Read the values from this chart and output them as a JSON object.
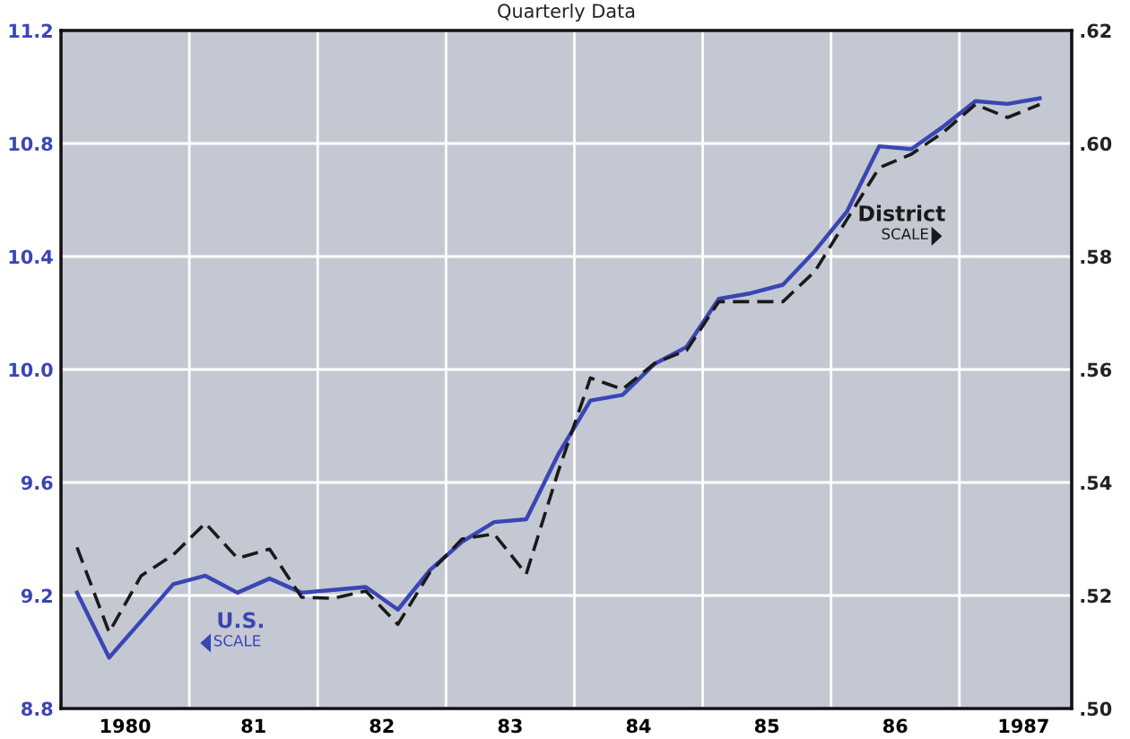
{
  "chart_data": {
    "type": "line",
    "title": "Quarterly Data",
    "x": [
      1979.625,
      1979.875,
      1980.125,
      1980.375,
      1980.625,
      1980.875,
      1981.125,
      1981.375,
      1981.625,
      1981.875,
      1982.125,
      1982.375,
      1982.625,
      1982.875,
      1983.125,
      1983.375,
      1983.625,
      1983.875,
      1984.125,
      1984.375,
      1984.625,
      1984.875,
      1985.125,
      1985.375,
      1985.625,
      1985.875,
      1986.125,
      1986.375,
      1986.625,
      1986.875,
      1987.125
    ],
    "series": [
      {
        "name": "U.S.",
        "color": "#3a46b4",
        "line_style": "solid",
        "values": [
          9.21,
          8.98,
          9.11,
          9.24,
          9.27,
          9.21,
          9.26,
          9.21,
          9.22,
          9.23,
          9.15,
          9.29,
          9.39,
          9.46,
          9.47,
          9.7,
          9.89,
          9.91,
          10.02,
          10.08,
          10.25,
          10.27,
          10.3,
          10.42,
          10.56,
          10.79,
          10.78,
          10.86,
          10.95,
          10.94,
          10.96
        ]
      },
      {
        "name": "District",
        "color": "#1a1a1a",
        "line_style": "dashed",
        "axis": "y2",
        "values": [
          0.5285,
          0.5135,
          0.5235,
          0.5272,
          0.5328,
          0.5266,
          0.5282,
          0.5197,
          0.5195,
          0.5208,
          0.5149,
          0.5241,
          0.53,
          0.5309,
          0.5238,
          0.542,
          0.5585,
          0.5565,
          0.5611,
          0.5634,
          0.572,
          0.572,
          0.572,
          0.5774,
          0.5866,
          0.5957,
          0.5981,
          0.602,
          0.6069,
          0.6046,
          0.6069
        ]
      }
    ],
    "annotations": [
      "SCALE",
      "SCALE"
    ],
    "xlim": [
      1979.5,
      1987.375
    ],
    "xticks": [
      {
        "value": 1980,
        "label": "1980"
      },
      {
        "value": 1980.5,
        "label": null
      },
      {
        "value": 1981,
        "label": "81"
      },
      {
        "value": 1981.5,
        "label": null
      },
      {
        "value": 1982,
        "label": "82"
      },
      {
        "value": 1982.5,
        "label": null
      },
      {
        "value": 1983,
        "label": "83"
      },
      {
        "value": 1983.5,
        "label": null
      },
      {
        "value": 1984,
        "label": "84"
      },
      {
        "value": 1984.5,
        "label": null
      },
      {
        "value": 1985,
        "label": "85"
      },
      {
        "value": 1985.5,
        "label": null
      },
      {
        "value": 1986,
        "label": "86"
      },
      {
        "value": 1986.5,
        "label": null
      },
      {
        "value": 1987,
        "label": "1987"
      }
    ],
    "ylim": [
      8.8,
      11.2
    ],
    "yticks": [
      8.8,
      9.2,
      9.6,
      {
        "value": 10,
        "label": "10.0"
      },
      10.4,
      10.8,
      11.2
    ],
    "y2lim": [
      0.5,
      0.62
    ],
    "y2ticks": [
      {
        "value": 0.5,
        "label": ".50"
      },
      {
        "value": 0.52,
        "label": ".52"
      },
      {
        "value": 0.54,
        "label": ".54"
      },
      {
        "value": 0.56,
        "label": ".56"
      },
      {
        "value": 0.58,
        "label": ".58"
      },
      {
        "value": 0.6,
        "label": ".60"
      },
      {
        "value": 0.62,
        "label": ".62"
      }
    ],
    "grid": true,
    "legend": false,
    "marker": "none"
  }
}
